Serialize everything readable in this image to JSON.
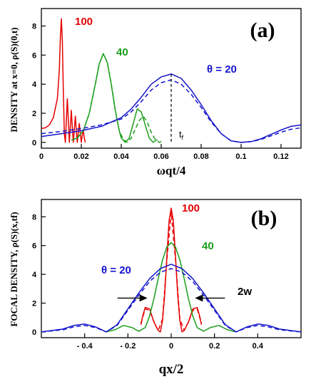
{
  "chart_data": [
    {
      "panel": "(a)",
      "type": "line",
      "xlabel": "ωqt/4",
      "ylabel": "DENSITY  at  x=0, ρ(S)(0,t)",
      "xlim": [
        0,
        0.13
      ],
      "ylim": [
        -0.4,
        9.2
      ],
      "xticks": [
        0,
        0.02,
        0.04,
        0.06,
        0.08,
        0.1,
        0.12
      ],
      "xtick_labels": [
        "0",
        "0.02",
        "0.04",
        "0.06",
        "0.08",
        "0.1",
        "0.12"
      ],
      "yticks": [
        0,
        2,
        4,
        6,
        8
      ],
      "ytick_labels": [
        "0",
        "2",
        "4",
        "6",
        "8"
      ],
      "annotations": [
        "tf"
      ],
      "marker_x": 0.065,
      "series": [
        {
          "name": "100",
          "color": "#e60000",
          "style": "solid",
          "x": [
            0.0,
            0.002,
            0.004,
            0.006,
            0.008,
            0.009,
            0.0095,
            0.01,
            0.0105,
            0.011,
            0.0115,
            0.012,
            0.0125,
            0.013,
            0.0135,
            0.014,
            0.0145,
            0.015,
            0.0155,
            0.016,
            0.0165,
            0.017,
            0.0175,
            0.018,
            0.0185,
            0.019,
            0.0195,
            0.02,
            0.0205,
            0.021,
            0.0215,
            0.022
          ],
          "y": [
            0.95,
            1.0,
            1.2,
            1.7,
            3.0,
            5.0,
            7.2,
            8.5,
            7.0,
            3.5,
            0.6,
            0.0,
            1.5,
            3.0,
            1.5,
            0.0,
            1.1,
            2.2,
            1.0,
            0.0,
            0.9,
            1.8,
            0.8,
            0.0,
            0.7,
            1.3,
            0.6,
            0.0,
            0.5,
            0.8,
            0.3,
            0.0
          ]
        },
        {
          "name": "40",
          "color": "#1a9e1a",
          "style": "solid",
          "x": [
            0.015,
            0.018,
            0.021,
            0.024,
            0.027,
            0.029,
            0.031,
            0.033,
            0.035,
            0.037,
            0.039,
            0.04,
            0.042,
            0.044,
            0.046,
            0.048,
            0.05,
            0.052,
            0.054,
            0.056,
            0.058
          ],
          "y": [
            0.15,
            0.3,
            0.8,
            2.0,
            4.0,
            5.4,
            6.1,
            5.5,
            4.0,
            2.2,
            0.8,
            0.3,
            0.0,
            0.3,
            1.3,
            2.3,
            2.1,
            1.2,
            0.3,
            0.0,
            0.2
          ]
        },
        {
          "name": "40 (dashed)",
          "color": "#1a9e1a",
          "style": "dashed",
          "x": [
            0.015,
            0.018,
            0.021,
            0.024,
            0.027,
            0.029,
            0.031,
            0.033,
            0.035,
            0.037,
            0.039,
            0.041,
            0.043,
            0.045,
            0.047,
            0.049,
            0.051,
            0.053,
            0.055,
            0.057,
            0.059,
            0.061
          ],
          "y": [
            0.15,
            0.3,
            0.8,
            2.0,
            4.0,
            5.4,
            6.1,
            5.5,
            4.0,
            2.2,
            0.8,
            0.2,
            0.0,
            0.3,
            0.9,
            1.5,
            1.8,
            1.4,
            0.7,
            0.2,
            0.0,
            0.1
          ]
        },
        {
          "name": "θ = 20",
          "color": "#1414cc",
          "style": "solid",
          "x": [
            0.0,
            0.01,
            0.02,
            0.03,
            0.04,
            0.045,
            0.05,
            0.055,
            0.06,
            0.065,
            0.07,
            0.075,
            0.08,
            0.085,
            0.09,
            0.095,
            0.1,
            0.105,
            0.11,
            0.115,
            0.12,
            0.125,
            0.13
          ],
          "y": [
            0.4,
            0.6,
            0.8,
            1.1,
            1.7,
            2.3,
            3.1,
            4.0,
            4.5,
            4.7,
            4.4,
            3.6,
            2.6,
            1.5,
            0.6,
            0.1,
            0.0,
            0.05,
            0.25,
            0.55,
            0.85,
            1.1,
            1.2
          ]
        },
        {
          "name": "θ = 20 (dashed)",
          "color": "#1414cc",
          "style": "dashed",
          "x": [
            0.0,
            0.01,
            0.02,
            0.03,
            0.04,
            0.045,
            0.05,
            0.055,
            0.06,
            0.065,
            0.07,
            0.075,
            0.08,
            0.085,
            0.09,
            0.095,
            0.1,
            0.105,
            0.11,
            0.115,
            0.12,
            0.125,
            0.13
          ],
          "y": [
            0.6,
            0.75,
            0.95,
            1.2,
            1.6,
            2.1,
            2.8,
            3.6,
            4.1,
            4.3,
            4.0,
            3.3,
            2.4,
            1.4,
            0.6,
            0.1,
            0.0,
            0.05,
            0.2,
            0.45,
            0.7,
            0.9,
            1.0
          ]
        }
      ]
    },
    {
      "panel": "(b)",
      "type": "line",
      "xlabel": "qx/2",
      "ylabel": "FOCAL  DENSITY, ρ(S)(x,tf)",
      "xlim": [
        -0.6,
        0.6
      ],
      "ylim": [
        -0.4,
        9.2
      ],
      "xticks": [
        -0.4,
        -0.2,
        0,
        0.2,
        0.4
      ],
      "xtick_labels": [
        "- 0.4",
        "- 0.2",
        "0",
        "0.2",
        "0.4"
      ],
      "yticks": [
        0,
        2,
        4,
        6,
        8
      ],
      "ytick_labels": [
        "0",
        "2",
        "4",
        "6",
        "8"
      ],
      "annotations": [
        "2w"
      ],
      "width_arrow_x": [
        -0.11,
        0.11
      ],
      "width_arrow_y": 2.35,
      "series": [
        {
          "name": "100",
          "color": "#e60000",
          "style": "solid",
          "x": [
            -0.14,
            -0.13,
            -0.12,
            -0.1,
            -0.08,
            -0.06,
            -0.05,
            -0.04,
            -0.03,
            -0.02,
            -0.01,
            0.0,
            0.01,
            0.02,
            0.03,
            0.04,
            0.05,
            0.06,
            0.08,
            0.1,
            0.12,
            0.13,
            0.14
          ],
          "y": [
            0.5,
            1.2,
            1.7,
            1.6,
            0.7,
            0.1,
            0.0,
            0.8,
            2.6,
            5.2,
            7.7,
            8.6,
            7.7,
            5.2,
            2.6,
            0.8,
            0.0,
            0.1,
            0.7,
            1.6,
            1.7,
            1.2,
            0.5
          ]
        },
        {
          "name": "100 (dashed)",
          "color": "#e60000",
          "style": "dashed",
          "x": [
            -0.14,
            -0.12,
            -0.1,
            -0.08,
            -0.06,
            -0.04,
            -0.02,
            0.0,
            0.02,
            0.04,
            0.06,
            0.08,
            0.1,
            0.12,
            0.14
          ],
          "y": [
            0.6,
            1.6,
            1.5,
            0.7,
            0.1,
            0.9,
            5.0,
            8.3,
            5.0,
            0.9,
            0.1,
            0.7,
            1.5,
            1.6,
            0.6
          ]
        },
        {
          "name": "40",
          "color": "#1a9e1a",
          "style": "solid",
          "x": [
            -0.3,
            -0.26,
            -0.22,
            -0.18,
            -0.15,
            -0.12,
            -0.1,
            -0.08,
            -0.06,
            -0.04,
            -0.02,
            0.0,
            0.02,
            0.04,
            0.06,
            0.08,
            0.1,
            0.12,
            0.15,
            0.18,
            0.22,
            0.26,
            0.3
          ],
          "y": [
            0.0,
            0.15,
            0.45,
            0.3,
            0.05,
            0.3,
            1.1,
            2.3,
            3.7,
            5.0,
            5.9,
            6.2,
            5.9,
            5.0,
            3.7,
            2.3,
            1.1,
            0.3,
            0.05,
            0.3,
            0.45,
            0.15,
            0.0
          ]
        },
        {
          "name": "θ = 20",
          "color": "#1414cc",
          "style": "solid",
          "x": [
            -0.6,
            -0.5,
            -0.45,
            -0.4,
            -0.35,
            -0.3,
            -0.25,
            -0.2,
            -0.15,
            -0.1,
            -0.05,
            0.0,
            0.05,
            0.1,
            0.15,
            0.2,
            0.25,
            0.3,
            0.35,
            0.4,
            0.45,
            0.5,
            0.6
          ],
          "y": [
            0.0,
            0.2,
            0.45,
            0.55,
            0.35,
            0.0,
            0.5,
            1.6,
            2.7,
            3.7,
            4.4,
            4.7,
            4.4,
            3.7,
            2.7,
            1.6,
            0.5,
            0.0,
            0.35,
            0.55,
            0.45,
            0.2,
            0.0
          ]
        },
        {
          "name": "θ = 20 (dashed)",
          "color": "#1414cc",
          "style": "dashed",
          "x": [
            -0.6,
            -0.5,
            -0.45,
            -0.4,
            -0.35,
            -0.3,
            -0.25,
            -0.2,
            -0.15,
            -0.1,
            -0.05,
            0.0,
            0.05,
            0.1,
            0.15,
            0.2,
            0.25,
            0.3,
            0.35,
            0.4,
            0.45,
            0.5,
            0.6
          ],
          "y": [
            0.0,
            0.15,
            0.35,
            0.45,
            0.3,
            0.0,
            0.45,
            1.5,
            2.55,
            3.5,
            4.15,
            4.4,
            4.15,
            3.5,
            2.55,
            1.5,
            0.45,
            0.0,
            0.3,
            0.45,
            0.35,
            0.15,
            0.0
          ]
        }
      ]
    }
  ],
  "labels": {
    "a": {
      "s100": "100",
      "s40": "40",
      "s20": "θ = 20",
      "marker": "t",
      "marker_sub": "f"
    },
    "b": {
      "s100": "100",
      "s40": "40",
      "s20": "θ = 20",
      "width": "2w"
    }
  },
  "colors": {
    "red": "#e60000",
    "green": "#1a9e1a",
    "blue": "#1414cc"
  }
}
